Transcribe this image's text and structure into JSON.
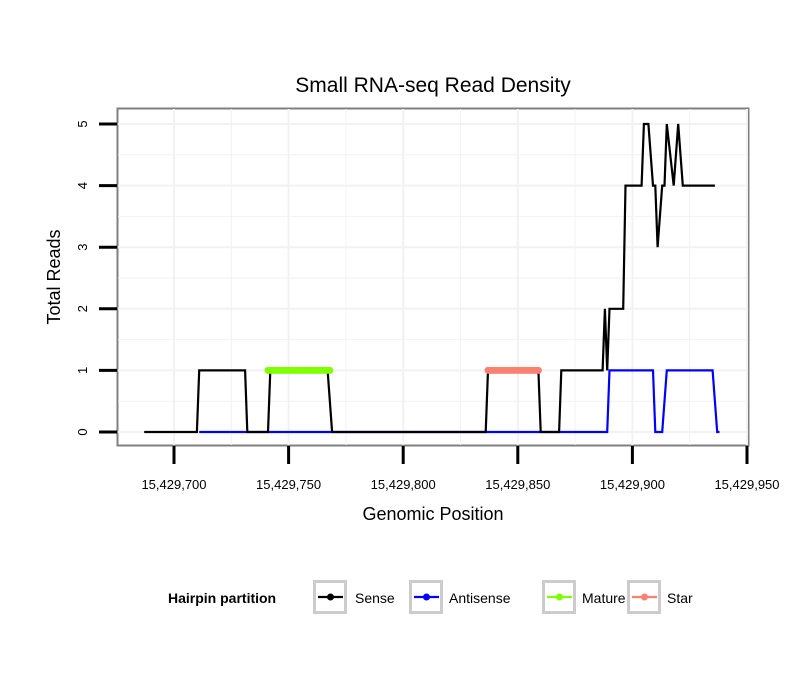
{
  "chart_data": {
    "type": "line",
    "title": "Small RNA-seq Read Density",
    "xlabel": "Genomic Position",
    "ylabel": "Total Reads",
    "xlim": [
      15429675,
      15429950
    ],
    "ylim": [
      -0.2,
      5.2
    ],
    "x_ticks": [
      15429700,
      15429750,
      15429800,
      15429850,
      15429900,
      15429950
    ],
    "x_tick_labels": [
      "15,429,700",
      "15,429,750",
      "15,429,800",
      "15,429,850",
      "15,429,900",
      "15,429,950"
    ],
    "y_ticks": [
      0,
      1,
      2,
      3,
      4,
      5
    ],
    "y_tick_labels": [
      "0",
      "1",
      "2",
      "3",
      "4",
      "5"
    ],
    "grid": true,
    "legend": {
      "title": "Hairpin partition",
      "position": "bottom",
      "entries": [
        "Sense",
        "Antisense",
        "Mature",
        "Star"
      ]
    },
    "series": [
      {
        "name": "Sense",
        "color": "#000000",
        "style": "line",
        "x": [
          15429687,
          15429710,
          15429711,
          15429731,
          15429732,
          15429741,
          15429742,
          15429767,
          15429769,
          15429836,
          15429837,
          15429859,
          15429860,
          15429868,
          15429869,
          15429887,
          15429888,
          15429889,
          15429890,
          15429896,
          15429897,
          15429904,
          15429905,
          15429907,
          15429909,
          15429910,
          15429911,
          15429913,
          15429914,
          15429915,
          15429918,
          15429920,
          15429922,
          15429936
        ],
        "y": [
          0,
          0,
          1,
          1,
          0,
          0,
          1,
          1,
          0,
          0,
          1,
          1,
          0,
          0,
          1,
          1,
          2,
          1,
          2,
          2,
          4,
          4,
          5,
          5,
          4,
          4,
          3,
          4,
          4,
          5,
          4,
          5,
          4,
          4
        ]
      },
      {
        "name": "Antisense",
        "color": "#0000ff",
        "style": "line",
        "x": [
          15429711,
          15429731,
          15429742,
          15429767,
          15429837,
          15429859,
          15429869,
          15429889,
          15429890,
          15429909,
          15429910,
          15429913,
          15429915,
          15429935,
          15429937,
          15429938
        ],
        "y": [
          0,
          0,
          0,
          0,
          0,
          0,
          0,
          0,
          1,
          1,
          0,
          0,
          1,
          1,
          0,
          0
        ]
      },
      {
        "name": "Mature",
        "color": "#7fff00",
        "style": "points",
        "x": [
          15429741,
          15429742,
          15429743,
          15429744,
          15429745,
          15429746,
          15429747,
          15429748,
          15429749,
          15429750,
          15429751,
          15429752,
          15429753,
          15429754,
          15429755,
          15429756,
          15429757,
          15429758,
          15429759,
          15429760,
          15429761,
          15429762,
          15429763,
          15429764,
          15429765,
          15429766,
          15429767,
          15429768
        ],
        "y": [
          1,
          1,
          1,
          1,
          1,
          1,
          1,
          1,
          1,
          1,
          1,
          1,
          1,
          1,
          1,
          1,
          1,
          1,
          1,
          1,
          1,
          1,
          1,
          1,
          1,
          1,
          1,
          1
        ]
      },
      {
        "name": "Star",
        "color": "#fa8072",
        "style": "points",
        "x": [
          15429837,
          15429838,
          15429839,
          15429840,
          15429841,
          15429842,
          15429843,
          15429844,
          15429845,
          15429846,
          15429847,
          15429848,
          15429849,
          15429850,
          15429851,
          15429852,
          15429853,
          15429854,
          15429855,
          15429856,
          15429857,
          15429858,
          15429859
        ],
        "y": [
          1,
          1,
          1,
          1,
          1,
          1,
          1,
          1,
          1,
          1,
          1,
          1,
          1,
          1,
          1,
          1,
          1,
          1,
          1,
          1,
          1,
          1,
          1
        ]
      }
    ]
  }
}
